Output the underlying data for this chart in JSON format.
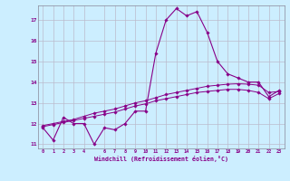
{
  "xlabel": "Windchill (Refroidissement éolien,°C)",
  "bg_color": "#cceeff",
  "grid_color": "#bbbbcc",
  "line_color": "#880088",
  "xlim": [
    -0.5,
    23.5
  ],
  "ylim": [
    10.8,
    17.7
  ],
  "yticks": [
    11,
    12,
    13,
    14,
    15,
    16,
    17
  ],
  "xticks": [
    0,
    1,
    2,
    3,
    4,
    6,
    7,
    8,
    9,
    10,
    11,
    12,
    13,
    14,
    15,
    16,
    17,
    18,
    19,
    20,
    21,
    22,
    23
  ],
  "hourly": [
    11.8,
    11.2,
    12.3,
    12.0,
    12.0,
    11.0,
    11.8,
    11.7,
    12.0,
    12.6,
    12.6,
    15.4,
    17.0,
    17.55,
    17.2,
    17.4,
    16.4,
    15.0,
    14.4,
    14.2,
    14.0,
    14.0,
    13.3,
    13.6
  ],
  "smooth1": [
    11.9,
    12.0,
    12.1,
    12.2,
    12.35,
    12.5,
    12.6,
    12.7,
    12.85,
    13.0,
    13.1,
    13.25,
    13.4,
    13.5,
    13.6,
    13.7,
    13.8,
    13.85,
    13.9,
    13.92,
    13.9,
    13.85,
    13.5,
    13.55
  ],
  "smooth2": [
    11.85,
    11.95,
    12.05,
    12.15,
    12.25,
    12.35,
    12.45,
    12.55,
    12.7,
    12.85,
    12.95,
    13.1,
    13.2,
    13.3,
    13.4,
    13.5,
    13.55,
    13.6,
    13.65,
    13.65,
    13.6,
    13.5,
    13.2,
    13.45
  ]
}
